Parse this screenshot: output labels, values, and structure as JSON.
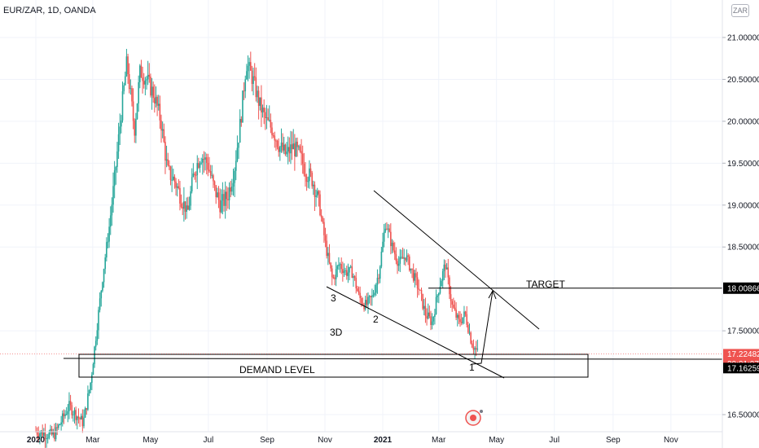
{
  "header": {
    "symbol": "EUR/ZAR, 1D, OANDA",
    "currency_button": "ZAR"
  },
  "colors": {
    "up": "#26a69a",
    "down": "#ef5350",
    "grid": "#f0f3fa",
    "text": "#131722",
    "drawing": "#000000",
    "price_label": "#ef5350"
  },
  "chart_data": {
    "type": "candlestick",
    "title": "EUR/ZAR, 1D, OANDA",
    "x_ticks": [
      "2020",
      "Mar",
      "May",
      "Jul",
      "Sep",
      "Nov",
      "2021",
      "Mar",
      "May",
      "Jul",
      "Sep",
      "Nov"
    ],
    "x_tick_dates": [
      "2020-01-01",
      "2020-03-01",
      "2020-05-01",
      "2020-07-01",
      "2020-09-01",
      "2020-11-01",
      "2021-01-01",
      "2021-03-01",
      "2021-05-01",
      "2021-07-01",
      "2021-09-01",
      "2021-11-01"
    ],
    "y_ticks": [
      "21.00000",
      "20.50000",
      "20.00000",
      "19.50000",
      "19.00000",
      "18.50000",
      "17.50000",
      "16.50000"
    ],
    "y_tick_values": [
      21.0,
      20.5,
      20.0,
      19.5,
      19.0,
      18.5,
      17.5,
      16.5
    ],
    "ylim": [
      16.38,
      21.2
    ],
    "grid": true,
    "close_path": [
      [
        "2020-01-01",
        16.3
      ],
      [
        "2020-01-20",
        16.25
      ],
      [
        "2020-02-05",
        16.6
      ],
      [
        "2020-02-20",
        16.4
      ],
      [
        "2020-02-28",
        16.9
      ],
      [
        "2020-03-05",
        17.5
      ],
      [
        "2020-03-12",
        18.2
      ],
      [
        "2020-03-18",
        18.7
      ],
      [
        "2020-03-24",
        19.3
      ],
      [
        "2020-03-31",
        20.1
      ],
      [
        "2020-04-06",
        20.7
      ],
      [
        "2020-04-14",
        19.9
      ],
      [
        "2020-04-20",
        20.6
      ],
      [
        "2020-04-27",
        20.5
      ],
      [
        "2020-05-05",
        20.3
      ],
      [
        "2020-05-12",
        20.0
      ],
      [
        "2020-05-19",
        19.4
      ],
      [
        "2020-05-26",
        19.3
      ],
      [
        "2020-06-02",
        19.1
      ],
      [
        "2020-06-09",
        18.9
      ],
      [
        "2020-06-16",
        19.4
      ],
      [
        "2020-06-23",
        19.6
      ],
      [
        "2020-06-30",
        19.5
      ],
      [
        "2020-07-07",
        19.2
      ],
      [
        "2020-07-14",
        19.0
      ],
      [
        "2020-07-21",
        19.1
      ],
      [
        "2020-07-28",
        19.4
      ],
      [
        "2020-08-04",
        20.0
      ],
      [
        "2020-08-10",
        20.7
      ],
      [
        "2020-08-17",
        20.5
      ],
      [
        "2020-08-24",
        20.2
      ],
      [
        "2020-08-31",
        20.0
      ],
      [
        "2020-09-07",
        19.9
      ],
      [
        "2020-09-14",
        19.7
      ],
      [
        "2020-09-21",
        19.6
      ],
      [
        "2020-09-28",
        19.7
      ],
      [
        "2020-10-05",
        19.6
      ],
      [
        "2020-10-12",
        19.4
      ],
      [
        "2020-10-19",
        19.3
      ],
      [
        "2020-10-26",
        19.0
      ],
      [
        "2020-11-02",
        18.5
      ],
      [
        "2020-11-09",
        18.1
      ],
      [
        "2020-11-16",
        18.3
      ],
      [
        "2020-11-23",
        18.2
      ],
      [
        "2020-11-30",
        18.2
      ],
      [
        "2020-12-07",
        17.9
      ],
      [
        "2020-12-14",
        17.8
      ],
      [
        "2020-12-21",
        17.9
      ],
      [
        "2020-12-28",
        18.2
      ],
      [
        "2021-01-04",
        18.8
      ],
      [
        "2021-01-11",
        18.5
      ],
      [
        "2021-01-18",
        18.3
      ],
      [
        "2021-01-25",
        18.4
      ],
      [
        "2021-02-01",
        18.2
      ],
      [
        "2021-02-08",
        18.0
      ],
      [
        "2021-02-15",
        17.7
      ],
      [
        "2021-02-22",
        17.6
      ],
      [
        "2021-03-01",
        18.0
      ],
      [
        "2021-03-08",
        18.3
      ],
      [
        "2021-03-15",
        17.8
      ],
      [
        "2021-03-22",
        17.6
      ],
      [
        "2021-03-29",
        17.7
      ],
      [
        "2021-04-05",
        17.35
      ],
      [
        "2021-04-12",
        17.22
      ]
    ],
    "current_price": "17.22482",
    "countdown": "20:01:07",
    "target_price": "18.00866",
    "demand_price": "17.16259"
  },
  "annotations": {
    "target_label": "TARGET",
    "demand_label": "DEMAND LEVEL",
    "wave_3": "3",
    "wave_2": "2",
    "wave_1": "1",
    "label_3d": "3D"
  }
}
